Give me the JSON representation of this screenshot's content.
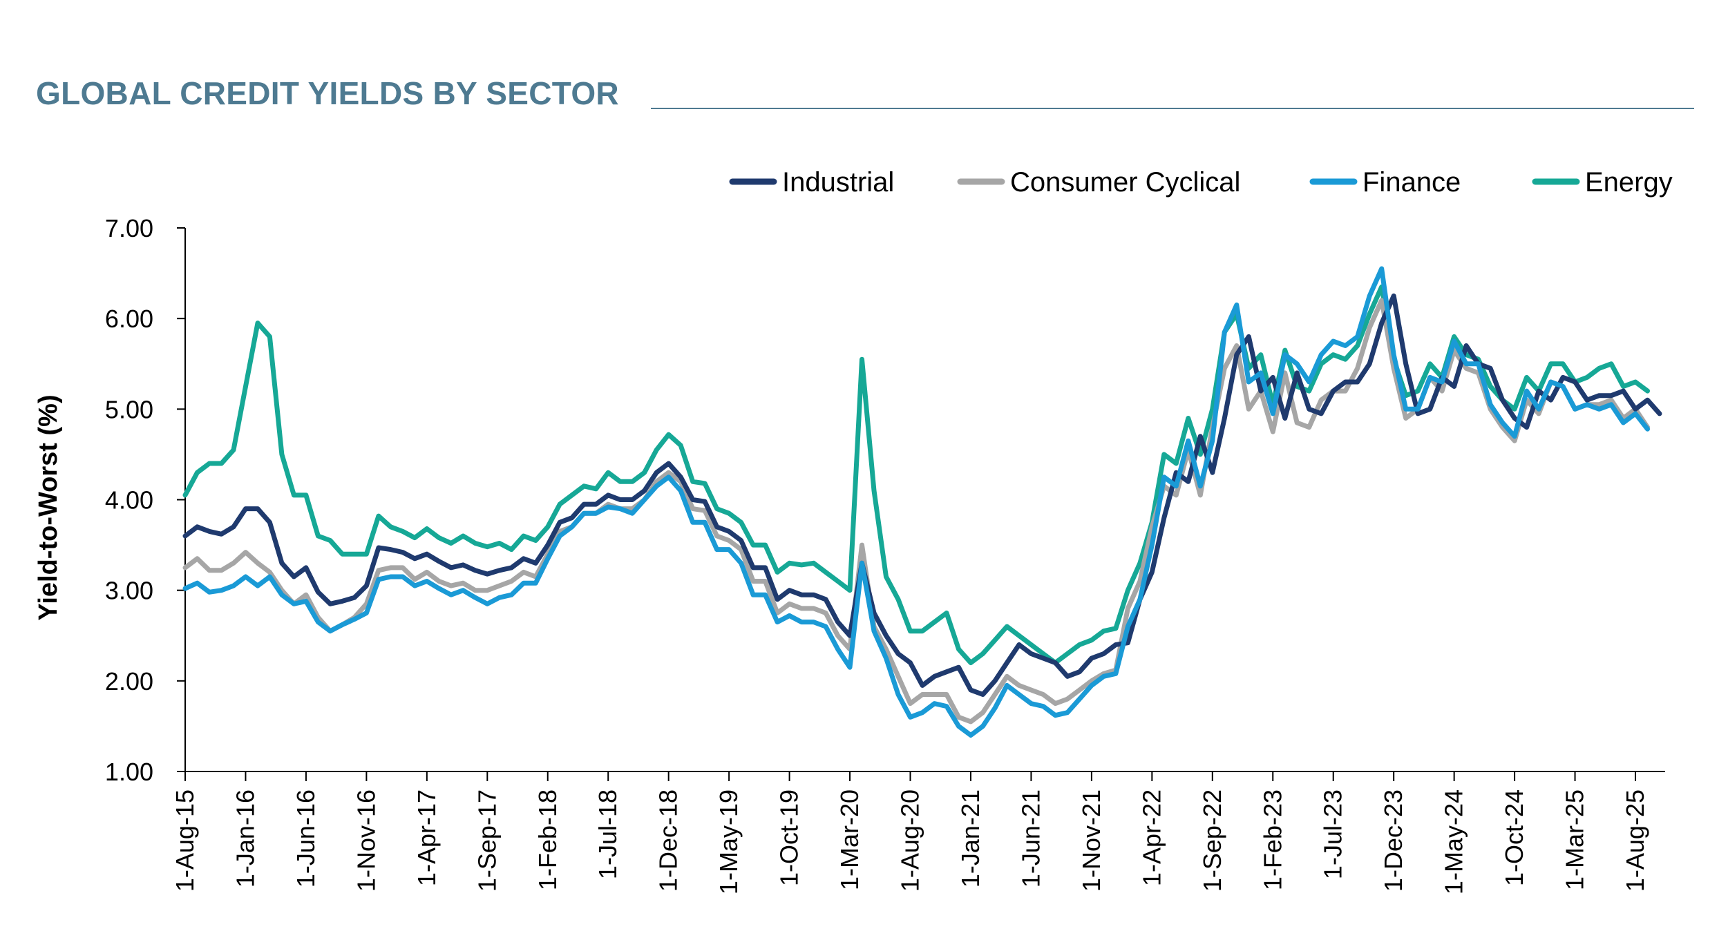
{
  "chart_data": {
    "type": "line",
    "title": "GLOBAL CREDIT YIELDS BY SECTOR",
    "xlabel": "",
    "ylabel": "Yield-to-Worst (%)",
    "ylim": [
      1.0,
      7.0
    ],
    "yticks": [
      "1.00",
      "2.00",
      "3.00",
      "4.00",
      "5.00",
      "6.00",
      "7.00"
    ],
    "xticks": [
      "1-Aug-15",
      "1-Jan-16",
      "1-Jun-16",
      "1-Nov-16",
      "1-Apr-17",
      "1-Sep-17",
      "1-Feb-18",
      "1-Jul-18",
      "1-Dec-18",
      "1-May-19",
      "1-Oct-19",
      "1-Mar-20",
      "1-Aug-20",
      "1-Jan-21",
      "1-Jun-21",
      "1-Nov-21",
      "1-Apr-22",
      "1-Sep-22",
      "1-Feb-23",
      "1-Jul-23",
      "1-Dec-23",
      "1-May-24",
      "1-Oct-24",
      "1-Mar-25",
      "1-Aug-25"
    ],
    "legend_position": "top-right",
    "series": [
      {
        "name": "Industrial",
        "color": "#1f3a6e",
        "values": [
          3.6,
          3.7,
          3.65,
          3.62,
          3.7,
          3.9,
          3.9,
          3.75,
          3.3,
          3.15,
          3.25,
          2.98,
          2.85,
          2.88,
          2.92,
          3.05,
          3.47,
          3.45,
          3.42,
          3.35,
          3.4,
          3.32,
          3.25,
          3.28,
          3.22,
          3.18,
          3.22,
          3.25,
          3.35,
          3.3,
          3.5,
          3.75,
          3.8,
          3.95,
          3.95,
          4.05,
          4.0,
          4.0,
          4.1,
          4.3,
          4.4,
          4.25,
          4.0,
          3.98,
          3.7,
          3.65,
          3.55,
          3.25,
          3.25,
          2.9,
          3.0,
          2.95,
          2.95,
          2.9,
          2.65,
          2.5,
          3.3,
          2.75,
          2.5,
          2.3,
          2.2,
          1.95,
          2.05,
          2.1,
          2.15,
          1.9,
          1.85,
          2.0,
          2.2,
          2.4,
          2.3,
          2.25,
          2.2,
          2.05,
          2.1,
          2.25,
          2.3,
          2.4,
          2.42,
          2.9,
          3.2,
          3.8,
          4.3,
          4.2,
          4.7,
          4.3,
          4.9,
          5.6,
          5.8,
          5.2,
          5.35,
          4.9,
          5.4,
          5.0,
          4.95,
          5.2,
          5.3,
          5.3,
          5.5,
          5.95,
          6.25,
          5.5,
          4.95,
          5.0,
          5.35,
          5.25,
          5.7,
          5.5,
          5.45,
          5.1,
          4.9,
          4.8,
          5.2,
          5.1,
          5.35,
          5.3,
          5.1,
          5.15,
          5.15,
          5.2,
          5.0,
          5.1,
          4.95
        ]
      },
      {
        "name": "Consumer Cyclical",
        "color": "#a6a6a6",
        "values": [
          3.25,
          3.35,
          3.22,
          3.22,
          3.3,
          3.42,
          3.3,
          3.2,
          3.0,
          2.85,
          2.95,
          2.7,
          2.55,
          2.62,
          2.7,
          2.85,
          3.22,
          3.25,
          3.25,
          3.12,
          3.2,
          3.1,
          3.05,
          3.08,
          3.0,
          3.0,
          3.05,
          3.1,
          3.2,
          3.15,
          3.4,
          3.65,
          3.7,
          3.85,
          3.85,
          3.95,
          3.9,
          3.9,
          4.0,
          4.2,
          4.3,
          4.2,
          3.9,
          3.88,
          3.6,
          3.55,
          3.45,
          3.1,
          3.1,
          2.75,
          2.85,
          2.8,
          2.8,
          2.75,
          2.5,
          2.35,
          3.5,
          2.6,
          2.35,
          2.05,
          1.75,
          1.85,
          1.85,
          1.85,
          1.6,
          1.55,
          1.65,
          1.85,
          2.05,
          1.95,
          1.9,
          1.85,
          1.75,
          1.8,
          1.9,
          2.0,
          2.08,
          2.12,
          2.8,
          3.1,
          3.7,
          4.15,
          4.05,
          4.55,
          4.05,
          4.8,
          5.45,
          5.7,
          5.0,
          5.2,
          4.75,
          5.4,
          4.85,
          4.8,
          5.1,
          5.2,
          5.2,
          5.45,
          5.9,
          6.2,
          5.45,
          4.9,
          5.0,
          5.35,
          5.2,
          5.65,
          5.45,
          5.4,
          5.0,
          4.8,
          4.65,
          5.1,
          4.95,
          5.3,
          5.25,
          5.0,
          5.05,
          5.05,
          5.1,
          4.9,
          5.0,
          4.8
        ]
      },
      {
        "name": "Finance",
        "color": "#1a9ad6",
        "values": [
          3.02,
          3.08,
          2.98,
          3.0,
          3.05,
          3.15,
          3.05,
          3.15,
          2.95,
          2.85,
          2.88,
          2.65,
          2.55,
          2.62,
          2.68,
          2.75,
          3.12,
          3.15,
          3.15,
          3.05,
          3.1,
          3.02,
          2.95,
          3.0,
          2.92,
          2.85,
          2.92,
          2.95,
          3.08,
          3.08,
          3.35,
          3.6,
          3.7,
          3.85,
          3.85,
          3.92,
          3.9,
          3.85,
          4.0,
          4.15,
          4.25,
          4.1,
          3.75,
          3.75,
          3.45,
          3.45,
          3.3,
          2.95,
          2.95,
          2.65,
          2.72,
          2.65,
          2.65,
          2.6,
          2.35,
          2.15,
          3.3,
          2.55,
          2.25,
          1.85,
          1.6,
          1.65,
          1.75,
          1.72,
          1.5,
          1.4,
          1.5,
          1.7,
          1.95,
          1.85,
          1.75,
          1.72,
          1.62,
          1.65,
          1.8,
          1.95,
          2.05,
          2.08,
          2.6,
          2.9,
          3.5,
          4.25,
          4.15,
          4.65,
          4.15,
          4.65,
          5.85,
          6.15,
          5.3,
          5.4,
          4.95,
          5.6,
          5.5,
          5.3,
          5.6,
          5.75,
          5.7,
          5.8,
          6.25,
          6.55,
          5.6,
          5.0,
          5.0,
          5.35,
          5.3,
          5.75,
          5.5,
          5.5,
          5.05,
          4.85,
          4.7,
          5.2,
          5.0,
          5.3,
          5.25,
          5.0,
          5.05,
          5.0,
          5.05,
          4.85,
          4.95,
          4.78
        ]
      },
      {
        "name": "Energy",
        "color": "#16a896",
        "values": [
          4.05,
          4.3,
          4.4,
          4.4,
          4.55,
          5.25,
          5.95,
          5.8,
          4.5,
          4.05,
          4.05,
          3.6,
          3.55,
          3.4,
          3.4,
          3.4,
          3.82,
          3.7,
          3.65,
          3.58,
          3.68,
          3.58,
          3.52,
          3.6,
          3.52,
          3.48,
          3.52,
          3.45,
          3.6,
          3.55,
          3.7,
          3.95,
          4.05,
          4.15,
          4.12,
          4.3,
          4.2,
          4.2,
          4.3,
          4.55,
          4.72,
          4.6,
          4.2,
          4.18,
          3.9,
          3.85,
          3.75,
          3.5,
          3.5,
          3.2,
          3.3,
          3.28,
          3.3,
          3.2,
          3.1,
          3.0,
          5.55,
          4.1,
          3.15,
          2.9,
          2.55,
          2.55,
          2.65,
          2.75,
          2.35,
          2.2,
          2.3,
          2.45,
          2.6,
          2.5,
          2.4,
          2.3,
          2.2,
          2.3,
          2.4,
          2.45,
          2.55,
          2.58,
          3.0,
          3.3,
          3.75,
          4.5,
          4.4,
          4.9,
          4.5,
          5.0,
          5.85,
          6.05,
          5.45,
          5.6,
          5.05,
          5.65,
          5.25,
          5.2,
          5.5,
          5.6,
          5.55,
          5.7,
          6.05,
          6.35,
          5.55,
          5.15,
          5.2,
          5.5,
          5.35,
          5.8,
          5.6,
          5.55,
          5.25,
          5.1,
          5.0,
          5.35,
          5.2,
          5.5,
          5.5,
          5.3,
          5.35,
          5.45,
          5.5,
          5.25,
          5.3,
          5.2
        ]
      }
    ]
  }
}
